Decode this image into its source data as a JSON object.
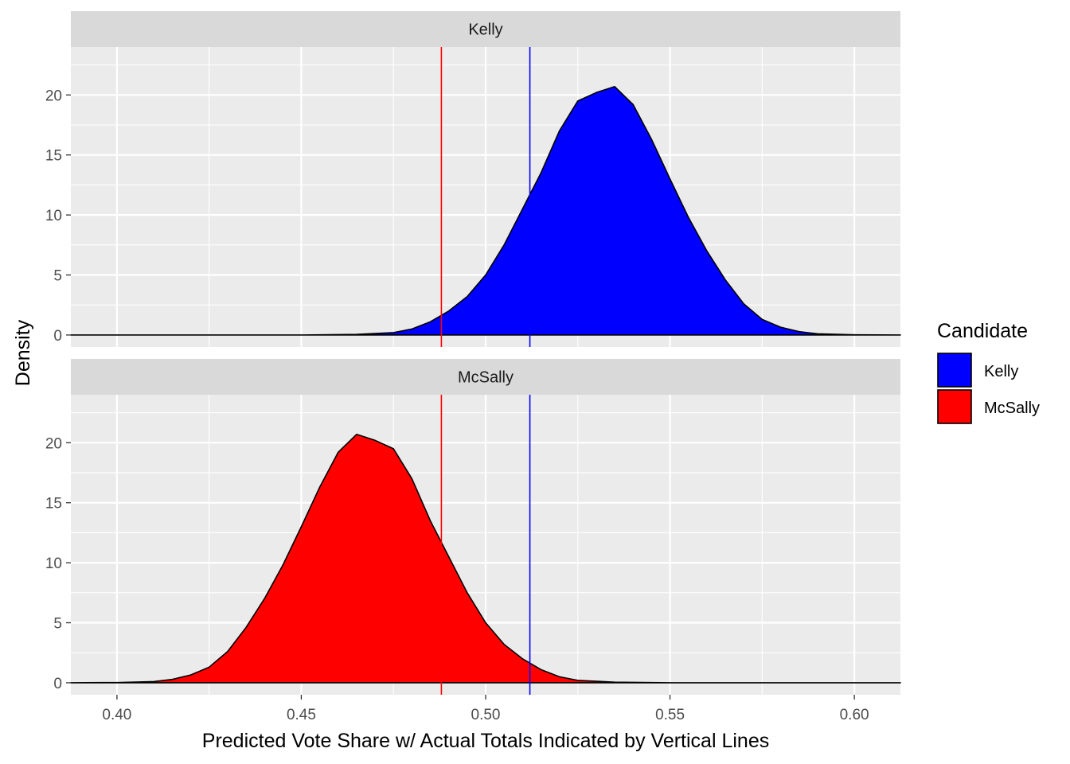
{
  "chart_data": {
    "type": "area",
    "xlabel": "Predicted Vote Share w/ Actual Totals Indicated by Vertical Lines",
    "ylabel": "Density",
    "xlim": [
      0.3875,
      0.6125
    ],
    "ylim": [
      -1,
      24
    ],
    "x_ticks": [
      "0.40",
      "0.45",
      "0.50",
      "0.55",
      "0.60"
    ],
    "y_ticks": [
      "0",
      "5",
      "10",
      "15",
      "20"
    ],
    "grid": true,
    "legend": {
      "title": "Candidate",
      "position": "right",
      "entries": [
        {
          "label": "Kelly",
          "color": "#0000ff"
        },
        {
          "label": "McSally",
          "color": "#ff0000"
        }
      ]
    },
    "vlines": [
      {
        "x": 0.488,
        "color": "#ff0000"
      },
      {
        "x": 0.512,
        "color": "#0000ff"
      }
    ],
    "panels": [
      {
        "strip": "Kelly",
        "fill": "#0000ff",
        "points": [
          [
            0.3875,
            0
          ],
          [
            0.43,
            0
          ],
          [
            0.45,
            0
          ],
          [
            0.465,
            0.05
          ],
          [
            0.475,
            0.2
          ],
          [
            0.48,
            0.5
          ],
          [
            0.485,
            1.1
          ],
          [
            0.49,
            2.0
          ],
          [
            0.495,
            3.2
          ],
          [
            0.5,
            5.0
          ],
          [
            0.505,
            7.5
          ],
          [
            0.51,
            10.5
          ],
          [
            0.515,
            13.5
          ],
          [
            0.52,
            17.0
          ],
          [
            0.525,
            19.5
          ],
          [
            0.53,
            20.2
          ],
          [
            0.535,
            20.7
          ],
          [
            0.54,
            19.2
          ],
          [
            0.545,
            16.3
          ],
          [
            0.55,
            13.0
          ],
          [
            0.555,
            9.8
          ],
          [
            0.56,
            7.0
          ],
          [
            0.565,
            4.6
          ],
          [
            0.57,
            2.6
          ],
          [
            0.575,
            1.3
          ],
          [
            0.58,
            0.65
          ],
          [
            0.585,
            0.28
          ],
          [
            0.59,
            0.1
          ],
          [
            0.6,
            0.02
          ],
          [
            0.6125,
            0
          ]
        ]
      },
      {
        "strip": "McSally",
        "fill": "#ff0000",
        "points": [
          [
            0.3875,
            0
          ],
          [
            0.4,
            0.02
          ],
          [
            0.41,
            0.1
          ],
          [
            0.415,
            0.28
          ],
          [
            0.42,
            0.65
          ],
          [
            0.425,
            1.3
          ],
          [
            0.43,
            2.6
          ],
          [
            0.435,
            4.6
          ],
          [
            0.44,
            7.0
          ],
          [
            0.445,
            9.8
          ],
          [
            0.45,
            13.0
          ],
          [
            0.455,
            16.3
          ],
          [
            0.46,
            19.2
          ],
          [
            0.465,
            20.7
          ],
          [
            0.47,
            20.2
          ],
          [
            0.475,
            19.5
          ],
          [
            0.48,
            17.0
          ],
          [
            0.485,
            13.5
          ],
          [
            0.49,
            10.5
          ],
          [
            0.495,
            7.5
          ],
          [
            0.5,
            5.0
          ],
          [
            0.505,
            3.2
          ],
          [
            0.51,
            2.0
          ],
          [
            0.515,
            1.1
          ],
          [
            0.52,
            0.5
          ],
          [
            0.525,
            0.2
          ],
          [
            0.535,
            0.05
          ],
          [
            0.55,
            0
          ],
          [
            0.57,
            0
          ],
          [
            0.6125,
            0
          ]
        ]
      }
    ]
  }
}
